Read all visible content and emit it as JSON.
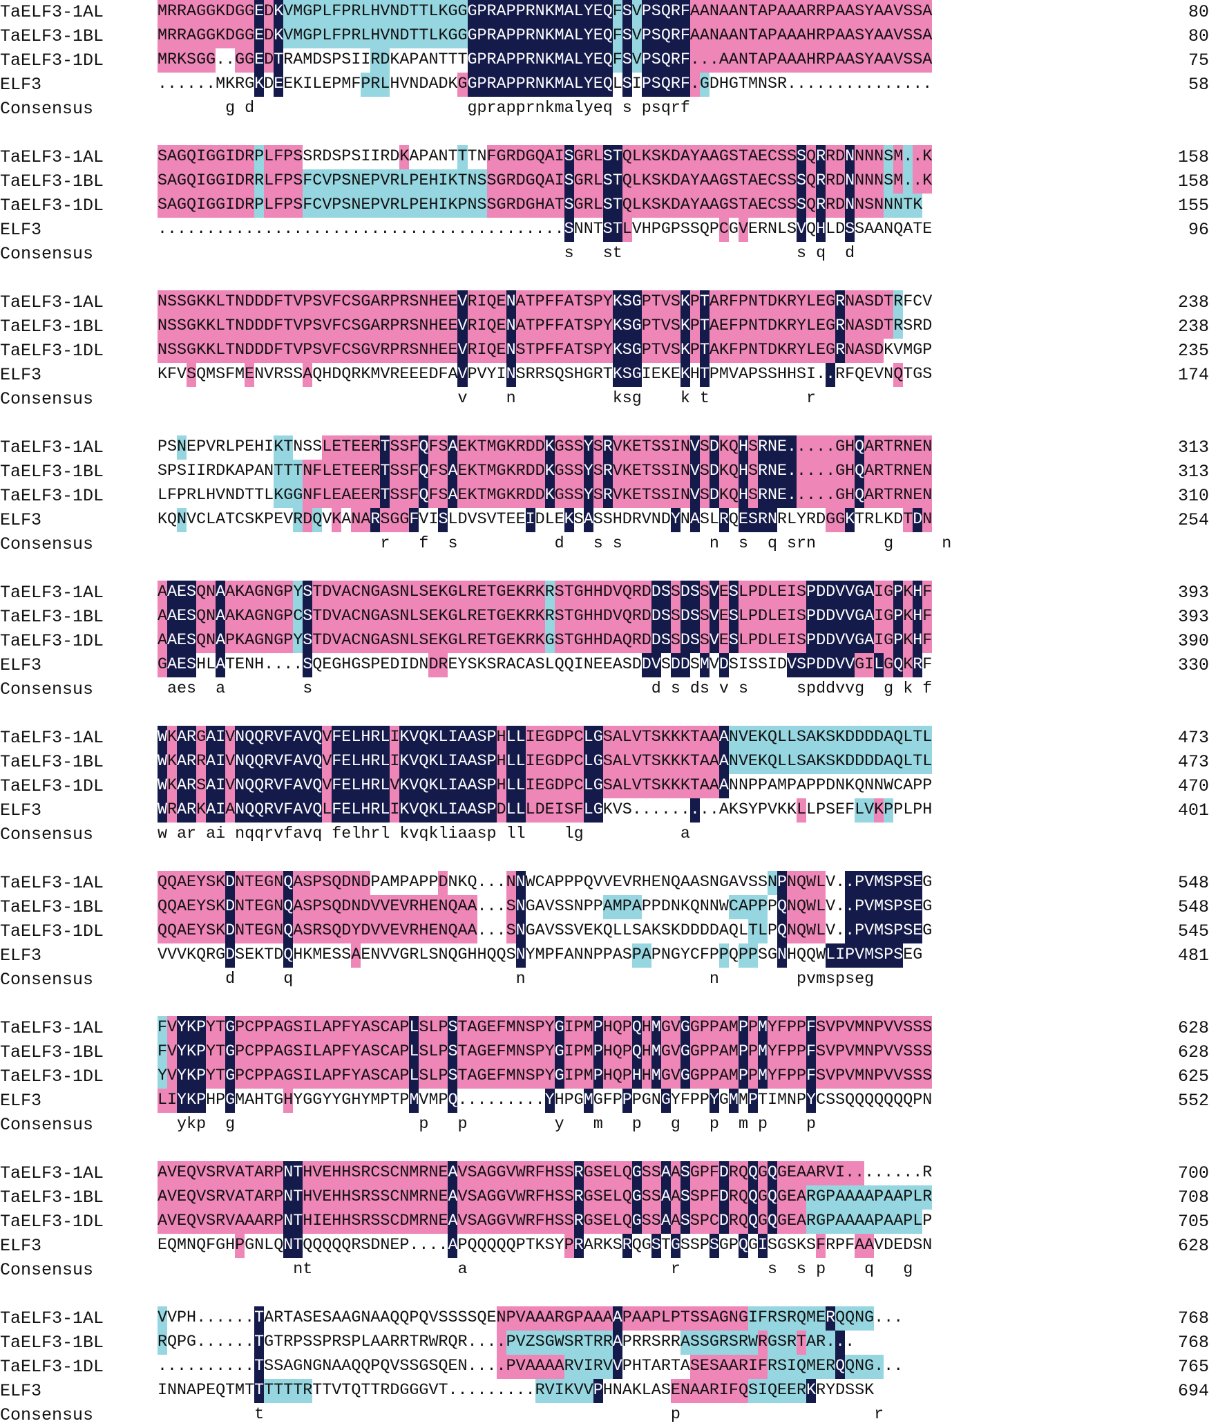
{
  "figure": {
    "title": "",
    "colors": {
      "identical": "#141a4a",
      "high": "#ee86b8",
      "medium": "#96d6e0"
    },
    "consensus_label": "Consensus"
  },
  "blocks": [
    {
      "rows": [
        {
          "name": "TaELF3-1AL",
          "seq": "MRRAGGKDGGEDKVMGPLFPRLHVNDTTLKGGGPRAPPRNKMALYEQFSVPSQRFAANAANTAPAAARRPAASYAAVSSA",
          "end": "80"
        },
        {
          "name": "TaELF3-1BL",
          "seq": "MRRAGGKDGGEDKVMGPLFPRLHVNDTTLKGGGPRAPPRNKMALYEQFSVPSQRFAANAANTAPAAAHRPAASYAAVSSA",
          "end": "80"
        },
        {
          "name": "TaELF3-1DL",
          "seq": "MRKSGG..GGEDTRAMDSPSIIRDKAPANTTTGPRAPPRNKMALYEQFSVPSQRF...AANTAPAAAHRPAASYAAVSSA",
          "end": "75"
        },
        {
          "name": "ELF3",
          "seq": "......MKRGKDEEKILEPMFPRLHVNDADKGGPRAPPRNKMALYEQLSIPSQRF.GDHGTMNSR...............",
          "end": "58"
        }
      ],
      "consensus": "       g d                      gprapprnkmalyeq s psqrf                         ",
      "shade": [
        "PPPPPPPPPPNPNCCCCCCCCCCCCCCCCCCCNNNNNNNNNNNNNNNCNCNNNNNPPPPPPPPPPPPPPPPPPPPPPPPP",
        "PPPPPPPPPPNPNCCCCCCCCCCCCCCCCCCCNNNNNNNNNNNNNNNCNCNNNNNPPPPPPPPPPPPPPPPPPPPPPPPP",
        "PPPPPP..PPNPNWWWWWWWWWCCWWWWWWWWNNNNNNNNNNNNNNNCNCNNNNNPPPPPPPPPPPPPPPPPPPPPPPPP",
        "......WWWWNWNWWWWWWWWCCCWWWWWWWPNNNNNNNNNNNNNNNWNWNNNNNPCWWWWWWWW..............."
      ]
    },
    {
      "rows": [
        {
          "name": "TaELF3-1AL",
          "seq": "SAGQIGGIDRPLFPSSRDSPSIIRDKAPANTTTNFGRDGQAISGRLSTQLKSKDAYAAGSTAECSSSQRRDNNNNSM..K",
          "end": "158"
        },
        {
          "name": "TaELF3-1BL",
          "seq": "SAGQIGGIDRRLFPSFCVPSNEPVRLPEHIKTNSSGRDGQAISGRLSTQLKSKDAYAAGSTAECSSSQRRDNNNNSM..K",
          "end": "158"
        },
        {
          "name": "TaELF3-1DL",
          "seq": "SAGQIGGIDRPLFPSFCVPSNEPVRLPEHIKPNSSGRDGHATSGRLSTQLKSKDAYAAGSTAECSSSQRRDNNSNNNTK",
          "end": "155"
        },
        {
          "name": "ELF3",
          "seq": "..........................................SNNTSTLVHPGPSSQPCGVERNLSVQHLDSSAANQATE",
          "end": "96"
        }
      ],
      "consensus": "                                          s   st                  s q  d          ",
      "shade": [
        "PPPPPPPPPPCPPPPWWWWWWWWWWPWWWWWCWWPPPPPPPPNPPPNNPPPPPPPPPPPPPPPPPPNPNPPNPPPCPCPP",
        "PPPPPPPPPPCPPPPCCCCCCCCCCCCCCCCCCCPPPPPPPPNPPPNNPPPPPPPPPPPPPPPPPPNPNPPNPPPCPCPP",
        "PPPPPPPPPPCPPPPCCCCCCCCCCCCCCCCCCCPPPPPPPPNPPPNNPPPPPPPPPPPPPPPPPPNPNPPNPPPCCCCC",
        "..........................................NWWWNNPWWWWWWWWWPWPWWWWWNWNWWNWWWWWWWW"
      ]
    },
    {
      "rows": [
        {
          "name": "TaELF3-1AL",
          "seq": "NSSGKKLTNDDDFTVPSVFCSGARPRSNHEEVRIQENATPFFATSPYKSGPTVSKPTARFPNTDKRYLEGRNASDTRFCV",
          "end": "238"
        },
        {
          "name": "TaELF3-1BL",
          "seq": "NSSGKKLTNDDDFTVPSVFCSGARPRSNHEEVRIQENATPFFATSPYKSGPTVSKPTAEFPNTDKRYLEGRNASDTRSRD",
          "end": "238"
        },
        {
          "name": "TaELF3-1DL",
          "seq": "NSSGKKLTNDDDFTVPSVFCSGVRPRSNHEEVRIQENSTPFFATSPYKSGPTVSKPTAKFPNTDKRYLEGRNASDKVMGP",
          "end": "235"
        },
        {
          "name": "ELF3",
          "seq": "KFVSQMSFMENVRSSAQHDQRKMVREEEDFAVPVYINSRRSQSHGRTKSGIEKEKHTPMVAPSSHHSI..RFQEVNQTGS",
          "end": "174"
        }
      ],
      "consensus": "                               v    n          ksg    k t          r             ",
      "shade": [
        "PPPPPPPPPPPPPPPPPPPPPPPPPPPPPPPNPPPPNPPPPPPPPPPNNNPPPPNPNPPPPPPPPPPPPPNPPPPPCWWW",
        "PPPPPPPPPPPPPPPPPPPPPPPPPPPPPPPNPPPPNPPPPPPPPPPNNNPPPPNPNPPPPPPPPPPPPPNPPPPPCWWW",
        "PPPPPPPPPPPPPPPPPPPPPPPPPPPPPPPNPPPPNPPPPPPPPPPNNNPPPPNPNPPPPPPPPPPPPPNPPPPWWWWW",
        "WWWPWWWWWPWWWWWPWWWWWWWWWWWWWWWNWWWWNWWWWWWWWWWNNNWWWWNWNWWWWWWWWWW..NWWWWWWPWW"
      ]
    },
    {
      "rows": [
        {
          "name": "TaELF3-1AL",
          "seq": "PSNEPVRLPEHIKTNSSLETEERTSSFQFSAEKTMGKRDDKGSSYSRVKETSSINVSDKQHSRNE.....GHQARTRNEN",
          "end": "313"
        },
        {
          "name": "TaELF3-1BL",
          "seq": "SPSIIRDKAPANTTTNFLETEERTSSFQFSAEKTMGKRDDKGSSYSRVKETSSINVSDKQHSRNE.....GHQARTRNEN",
          "end": "313"
        },
        {
          "name": "TaELF3-1DL",
          "seq": "LFPRLHVNDTTLKGGNFLEAEERTSSFQFSAEKTMGKRDDKGSSYSRVKETSSINVSDKQHSRNE.....GHQARTRNEN",
          "end": "310"
        },
        {
          "name": "ELF3",
          "seq": "KQNVCLATCSKPEVRDQVKANARSGGFVISLDVSVTEEIDLEKSASSHDRVNDYNASLRQESRNRLYRDGGKTRLKDTDN",
          "end": "254"
        }
      ],
      "consensus": "                       r   f  s          d   s s         n  s  q srn       g     n",
      "shade": [
        "WWCWWWWWWWWWCCWWWPPPPPPNPPPNPPNPPPPPPPPPNPPPNPNPPPPPPPPNPNPPNPNNNNPPPPPPNPPPPPPPNP",
        "WWWWWWWWWWWWCCCPPPPPPPPNPPPNPPNPPPPPPPPPNPPPNPNPPPPPPPPNPNPPNPNNNNPPPPPPNPPPPPPPNP",
        "WWWWWWWWWWWWCCCPPPPPPPPNPPPNPPNPPPPPPPPPNPPPNPNPPPPPPPPNPNPPNPNNNNPPPPPPNPPPPPPPNP",
        "WWCWWWWWWWWWWWCPCWPWPPNPPPNWWNWWWWWWWWNWWWNWNWWWWWWWWNWNWWNWNNNNWWWWWPPNWWWWWPNP"
      ]
    },
    {
      "rows": [
        {
          "name": "TaELF3-1AL",
          "seq": "AAESQNAAKAGNGPYSTDVACNGASNLSEKGLRETGEKRKRSTGHHDVQRDDSSDSSVESLPDLEISPDDVVGAIGPKHF",
          "end": "393"
        },
        {
          "name": "TaELF3-1BL",
          "seq": "AAESQNAAKAGNGPCSTDVACNGASNLSEKGLRETGEKRKRSTGHHDVQRDDSSDSSVESLPDLEISPDDVVGAIGPKHF",
          "end": "393"
        },
        {
          "name": "TaELF3-1DL",
          "seq": "AAESQNAPKAGNGPYSTDVACNGASNLSEKGLRETGEKRKGSTGHHDAQRDDSSDSSVESLPDLEISPDDVVGAIGPKHF",
          "end": "390"
        },
        {
          "name": "ELF3",
          "seq": "GAESHLATENH....SQEGHGSPEDIDNDREYSKSRACASLQQINEEASDDVSDDSMVDSISSIDVSPDDVVGILGQKRF",
          "end": "330"
        }
      ],
      "consensus": " aes  a        s                                   d s ds v s     spddvvg  g k f",
      "shade": [
        "PNNNPPNPPPPPPPCNPPPPPPPPPPPPPPPPPPPPPPPPCPPPPPPPPPPNNPNNPNPNPPPPPPPNNNNNNNPPNPNPNN",
        "PNNNPPNPPPPPPPCNPPPPPPPPPPPPPPPPPPPPPPPPCPPPPPPPPPPNNPNNPNPNPPPPPPPNNNNNNNPPNPNPNN",
        "PNNNPPNPPPPPPPCNPPPPPPPPPPPPPPPPPPPPPPPPCPPPPPPPPPPNNPNNPNPNPPPPPPPNNNNNNNPPNPNPNN",
        "PNNNWWNWWWW....NWWWWWWWWWWWWPPWWWWWWWWWWWWWWWWWWWWNNWNNWNWNWWWWWWNNNNNNNPPNPNPN"
      ]
    },
    {
      "rows": [
        {
          "name": "TaELF3-1AL",
          "seq": "WKARGAIVNQQRVFAVQVFELHRLIKVQKLIAASPHLLIEGDPCLGSALVTSKKKTAAANVEKQLLSAKSKDDDDAQLTL",
          "end": "473"
        },
        {
          "name": "TaELF3-1BL",
          "seq": "WKARRAIVNQQRVFAVQVFELHRLIKVQKLIAASPHLLIEGDPCLGSALVTSKKKTAAANVEKQLLSAKSKDDDDAQLTL",
          "end": "473"
        },
        {
          "name": "TaELF3-1DL",
          "seq": "WKARSAIVNQQRVFAVQVFELHRLVKVQKLIAASPHLLIEGDPCLGSALVTSKKKTAAANNPPAMPAPPDNKQNNWCAPP",
          "end": "470"
        },
        {
          "name": "ELF3",
          "seq": "WRARKAIANQQRVFAVQLFELHRLIKVQKLIAASPDLLLDEISFLGKVS.........AKSYPVKKLLPSEFLVKPPLPH",
          "end": "401"
        }
      ],
      "consensus": "w ar ai nqqrvfavq felhrl kvqkliaasp ll    lg          a                         ",
      "shade": [
        "NPNNPNNPNNNNNNNNNPNNNNNNPNNNNNNNNNNPNNPPPPPPNNPPPPPPPPPPPPNCCCCCCCCCCCCCCCCCCCCC",
        "NPNNPNNPNNNNNNNNNPNNNNNNPNNNNNNNNNNPNNPPPPPPNNPPPPPPPPPPPPNCCCCCCCCCCCCCCCCCCCCC",
        "NPNNPNNPNNNNNNNNNPNNNNNNPNNNNNNNNNNPNNPPPPPPNNPPPPPPPPPPPPNWWWWWWWWWWWWWWWWWWWWW",
        "NPNNPNNPNNNNNNNNNPNNNNNNPNNNNNNNNNNPNNPPPPPPNN.........NWWWWWWWWWWPWWWWWCCPCW"
      ]
    },
    {
      "rows": [
        {
          "name": "TaELF3-1AL",
          "seq": "QQAEYSKDNTEGNQASPSQDNDPAMPAPPDNKQ...NNWCAPPPQVVEVRHENQAASNGAVSSNPNQWLV..PVMSPSEG",
          "end": "548"
        },
        {
          "name": "TaELF3-1BL",
          "seq": "QQAEYSKDNTEGNQASPSQDNDVVEVRHENQAA...SNGAVSSNPPAMPAPPDNKQNNWCAPPPQNQWLV..PVMSPSEG",
          "end": "548"
        },
        {
          "name": "TaELF3-1DL",
          "seq": "QQAEYSKDNTEGNQASRSQDYDVVEVRHENQAA...SNGAVSSVEKQLLSAKSKDDDDAQLTLPQNQWLV..PVMSPSEG",
          "end": "545"
        },
        {
          "name": "ELF3",
          "seq": "VVVKQRGDSEKTDQHKMESSAENVVGRLSNQGHHQQSNYMPFANNPPASPAPNGYCFPPQPPSGNHQQWLIPVMSPSEG",
          "end": "481"
        }
      ],
      "consensus": "       d     q                       n                   n        pvmspseg",
      "shade": [
        "PPPPPPPNPPPPPNPPPPPPPPWWWWWWWPWWW...PNWWWWWWWWWWWWWWWWWWWWWWWWWCNPPPP..NNNNNNNN",
        "PPPPPPPNPPPPPNPPPPPPPPPPPPPPPPPPP...PNWWWWWWWWCCCCWWWWWWWWWCCCCWNPPPP..NNNNNNNN",
        "PPPPPPPNPPPPPNPPPPPPPPPPPPPPPPPPP...PNWWWWWWWWWWWWWWWWWWWWWWWCCWNPPPP..NNNNNNNN",
        "WWWWWWWNWWWWWNWWWWWWPWWWWWWWWWWWWWWWWNWWWWWWWWWWWCCWWWWWWWCWCCWWNWWWWNNNNNNNN"
      ]
    },
    {
      "rows": [
        {
          "name": "TaELF3-1AL",
          "seq": "FVYKPYTGPCPPAGSILAPFYASCAPLSLPSTAGEFMNSPYGIPMPHQPQHMGVGGPPAMPPMYFPPFSVPVMNPVVSSS",
          "end": "628"
        },
        {
          "name": "TaELF3-1BL",
          "seq": "FVYKPYTGPCPPAGSILAPFYASCAPLSLPSTAGEFMNSPYGIPMPHQPQHMGVGGPPAMPPMYFPPFSVPVMNPVVSSS",
          "end": "628"
        },
        {
          "name": "TaELF3-1DL",
          "seq": "YVYKPYTGPCPPAGSILAPFYASCAPLSLPSTAGEFMNSPYGIPMPHQPHHMGVGGPPAMPPMYFPPFSVPVMNPVVSSS",
          "end": "625"
        },
        {
          "name": "ELF3",
          "seq": "LIYKPHPGMAHTGHYGGYYGHYMPTPMVMPQ.........YHPGMGFPPPGNGYFPPYGMMPTIMNPYCSSQQQQQQQPN",
          "end": "552"
        }
      ],
      "consensus": "  ykp  g                   p   p         y   m   p   g   p  m p    p              ",
      "shade": [
        "CPNNNPPNPPPPPPPPPPPPPPPPPPNPPPNPPPPPPPPPPNPPPNPPPNPNPPNPPPPPNPNPPPPNPPPPPPPPPPPPPP",
        "CPNNNPPNPPPPPPPPPPPPPPPPPPNPPPNPPPPPPPPPPNPPPNPPPNPNPPNPPPPPNPNPPPPNPPPPPPPPPPPPPP",
        "CPNNNPPNPPPPPPPPPPPPPPPPPPNPPPNPPPPPPPPPPNPPPNPPPNPNPPNPPPPPNPNPPPPNPPPPPPPPPPPPPP",
        "PPNNNWWNWWWWWPWWWWWWWWWWWWNWWWN.........NWWWNWWWNWWWNWWWWNWNWNWWWWWNWWWWWWWWWWWW"
      ]
    },
    {
      "rows": [
        {
          "name": "TaELF3-1AL",
          "seq": "AVEQVSRVATARPNTHVEHHSRCSCNMRNEAVSAGGVWRFHSSRGSELQGSSAASGPFDRQQGQGEAARVI........R",
          "end": "700"
        },
        {
          "name": "TaELF3-1BL",
          "seq": "AVEQVSRVATARPNTHVEHHSRSSCNMRNEAVSAGGVWRFHSSRGSELQGSSAASSPFDRQQGQGEARGPAAAAPAAPLR",
          "end": "708"
        },
        {
          "name": "TaELF3-1DL",
          "seq": "AVEQVSRVAAARPNTHIEHHSRSSCDMRNEAVSAGGVWRFHSSRGSELQGSSAASSPCDRQQGQGEARGPAAAAPAAPLP",
          "end": "705"
        },
        {
          "name": "ELF3",
          "seq": "EQMNQFGHPGNLQNTQQQQQRSDNEP....APQQQQQPTKSYPRARKSRQGSTGSSPSGPQGISGSKSFRPFAAVDEDSN",
          "end": "628"
        }
      ],
      "consensus": "              nt               a                     r         s  s p    q   g         ",
      "shade": [
        "PPPPPPPPPPPPPNNPPPPPPPPPPPPPPPNPPPPPPPPPPPPNPPPPPNPPNPNPPPNPPNPNPPPPPPPPP........C",
        "PPPPPPPPPPPPPNNPPPPPPPPPPPPPPPNPPPPPPPPPPPPNPPPPPNPPNPNPPPNPPNPNPPPCCCCCCCCCCCCC",
        "PPPPPPPPPPPPPNNPPPPPPPPPPPPPPPNPPPPPPPPPPPPNPPPPPNPPNPNPPPNPPNPNPPPCCCCCCCCCCCCW",
        "WWWWWWWWPWWWWNNWWWWWWWWWWW....NWWWWWWWWWWWPNWWWWNWWNWNWWWNWWNWNWWWWWPWWWPPWWWWWW"
      ]
    },
    {
      "rows": [
        {
          "name": "TaELF3-1AL",
          "seq": "VVPH......TARTASESAAGNAAQQPQVSSSSQENPVAAARGPAAAAPAAPLPTSSAGNGIFRSRQMERQQNG...",
          "end": "768"
        },
        {
          "name": "TaELF3-1BL",
          "seq": "RQPG......TGTRPSSPRSPLAARRTRWRQR....PVZSGWSRTRRAPRRSRRASSGRSRWRGSRTAR...",
          "end": "768"
        },
        {
          "name": "TaELF3-1DL",
          "seq": "..........TSSAGNGNAAQQPQVSSGSQEN....PVAAAARVIRVVPHTARTASESAARIFRSIQMERQQNG...",
          "end": "765"
        },
        {
          "name": "ELF3",
          "seq": "INNAPEQTMTTTTTTRTTVTQTTRDGGGVT.........RVIKVVPHNAKLASENAARIFQSIQEERKRYDSSK",
          "end": "694"
        }
      ],
      "consensus": "          t                                          p                    r         ",
      "shade": [
        "CWWW......NWWWWWWWWWWWWWWWWWWWWWWWWPPPPPPPPPPPPNPPPPPPPPPPPPPCCCCCCCCNCCCC...",
        "CWWW......NWWWWWWWWWWWWWWWWWWWW....PCCCCCCCCCCCNWWWWWWCCCCCCCCPCCCPCCCN...",
        "..........NWWWWWWWWWWWWWWWWWWWW....PPPPPPPCCCCCNWWWWWWWPPPPPPPPCCCCCCCNCCCC...",
        "WWWWWWWWWWNCCCCCWWWWWWWWWWWWWW.........CCCCCCNWWWWWWWPPPPPPPPCCCCCCNWWWWW"
      ]
    }
  ]
}
